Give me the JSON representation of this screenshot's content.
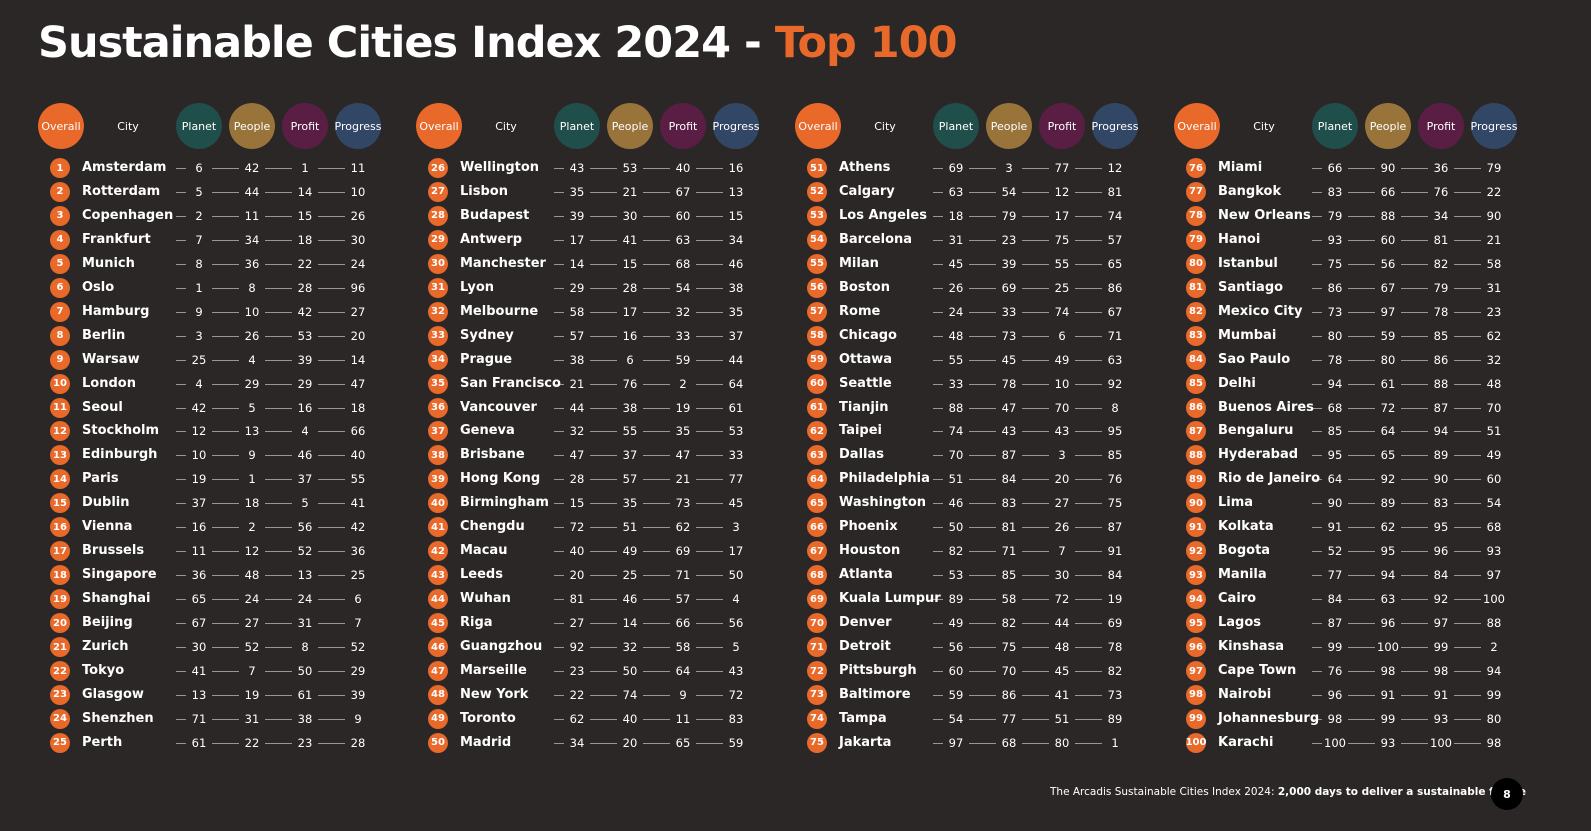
{
  "title": {
    "main": "Sustainable Cities Index 2024 - ",
    "accent": "Top 100"
  },
  "headers": {
    "overall": "Overall",
    "city": "City",
    "planet": "Planet",
    "people": "People",
    "profit": "Profit",
    "progress": "Progress"
  },
  "colors": {
    "overall": "#e8692a",
    "planet": "#1f4e4b",
    "people": "#98733a",
    "profit": "#5a1e45",
    "progress": "#324766",
    "background": "#2b2727"
  },
  "columns": [
    {
      "rows": [
        {
          "rank": 1,
          "city": "Amsterdam",
          "planet": 6,
          "people": 42,
          "profit": 1,
          "progress": 11
        },
        {
          "rank": 2,
          "city": "Rotterdam",
          "planet": 5,
          "people": 44,
          "profit": 14,
          "progress": 10
        },
        {
          "rank": 3,
          "city": "Copenhagen",
          "planet": 2,
          "people": 11,
          "profit": 15,
          "progress": 26
        },
        {
          "rank": 4,
          "city": "Frankfurt",
          "planet": 7,
          "people": 34,
          "profit": 18,
          "progress": 30
        },
        {
          "rank": 5,
          "city": "Munich",
          "planet": 8,
          "people": 36,
          "profit": 22,
          "progress": 24
        },
        {
          "rank": 6,
          "city": "Oslo",
          "planet": 1,
          "people": 8,
          "profit": 28,
          "progress": 96
        },
        {
          "rank": 7,
          "city": "Hamburg",
          "planet": 9,
          "people": 10,
          "profit": 42,
          "progress": 27
        },
        {
          "rank": 8,
          "city": "Berlin",
          "planet": 3,
          "people": 26,
          "profit": 53,
          "progress": 20
        },
        {
          "rank": 9,
          "city": "Warsaw",
          "planet": 25,
          "people": 4,
          "profit": 39,
          "progress": 14
        },
        {
          "rank": 10,
          "city": "London",
          "planet": 4,
          "people": 29,
          "profit": 29,
          "progress": 47
        },
        {
          "rank": 11,
          "city": "Seoul",
          "planet": 42,
          "people": 5,
          "profit": 16,
          "progress": 18
        },
        {
          "rank": 12,
          "city": "Stockholm",
          "planet": 12,
          "people": 13,
          "profit": 4,
          "progress": 66
        },
        {
          "rank": 13,
          "city": "Edinburgh",
          "planet": 10,
          "people": 9,
          "profit": 46,
          "progress": 40
        },
        {
          "rank": 14,
          "city": "Paris",
          "planet": 19,
          "people": 1,
          "profit": 37,
          "progress": 55
        },
        {
          "rank": 15,
          "city": "Dublin",
          "planet": 37,
          "people": 18,
          "profit": 5,
          "progress": 41
        },
        {
          "rank": 16,
          "city": "Vienna",
          "planet": 16,
          "people": 2,
          "profit": 56,
          "progress": 42
        },
        {
          "rank": 17,
          "city": "Brussels",
          "planet": 11,
          "people": 12,
          "profit": 52,
          "progress": 36
        },
        {
          "rank": 18,
          "city": "Singapore",
          "planet": 36,
          "people": 48,
          "profit": 13,
          "progress": 25
        },
        {
          "rank": 19,
          "city": "Shanghai",
          "planet": 65,
          "people": 24,
          "profit": 24,
          "progress": 6
        },
        {
          "rank": 20,
          "city": "Beijing",
          "planet": 67,
          "people": 27,
          "profit": 31,
          "progress": 7
        },
        {
          "rank": 21,
          "city": "Zurich",
          "planet": 30,
          "people": 52,
          "profit": 8,
          "progress": 52
        },
        {
          "rank": 22,
          "city": "Tokyo",
          "planet": 41,
          "people": 7,
          "profit": 50,
          "progress": 29
        },
        {
          "rank": 23,
          "city": "Glasgow",
          "planet": 13,
          "people": 19,
          "profit": 61,
          "progress": 39
        },
        {
          "rank": 24,
          "city": "Shenzhen",
          "planet": 71,
          "people": 31,
          "profit": 38,
          "progress": 9
        },
        {
          "rank": 25,
          "city": "Perth",
          "planet": 61,
          "people": 22,
          "profit": 23,
          "progress": 28
        }
      ]
    },
    {
      "rows": [
        {
          "rank": 26,
          "city": "Wellington",
          "planet": 43,
          "people": 53,
          "profit": 40,
          "progress": 16
        },
        {
          "rank": 27,
          "city": "Lisbon",
          "planet": 35,
          "people": 21,
          "profit": 67,
          "progress": 13
        },
        {
          "rank": 28,
          "city": "Budapest",
          "planet": 39,
          "people": 30,
          "profit": 60,
          "progress": 15
        },
        {
          "rank": 29,
          "city": "Antwerp",
          "planet": 17,
          "people": 41,
          "profit": 63,
          "progress": 34
        },
        {
          "rank": 30,
          "city": "Manchester",
          "planet": 14,
          "people": 15,
          "profit": 68,
          "progress": 46
        },
        {
          "rank": 31,
          "city": "Lyon",
          "planet": 29,
          "people": 28,
          "profit": 54,
          "progress": 38
        },
        {
          "rank": 32,
          "city": "Melbourne",
          "planet": 58,
          "people": 17,
          "profit": 32,
          "progress": 35
        },
        {
          "rank": 33,
          "city": "Sydney",
          "planet": 57,
          "people": 16,
          "profit": 33,
          "progress": 37
        },
        {
          "rank": 34,
          "city": "Prague",
          "planet": 38,
          "people": 6,
          "profit": 59,
          "progress": 44
        },
        {
          "rank": 35,
          "city": "San Francisco",
          "planet": 21,
          "people": 76,
          "profit": 2,
          "progress": 64
        },
        {
          "rank": 36,
          "city": "Vancouver",
          "planet": 44,
          "people": 38,
          "profit": 19,
          "progress": 61
        },
        {
          "rank": 37,
          "city": "Geneva",
          "planet": 32,
          "people": 55,
          "profit": 35,
          "progress": 53
        },
        {
          "rank": 38,
          "city": "Brisbane",
          "planet": 47,
          "people": 37,
          "profit": 47,
          "progress": 33
        },
        {
          "rank": 39,
          "city": "Hong Kong",
          "planet": 28,
          "people": 57,
          "profit": 21,
          "progress": 77
        },
        {
          "rank": 40,
          "city": "Birmingham",
          "planet": 15,
          "people": 35,
          "profit": 73,
          "progress": 45
        },
        {
          "rank": 41,
          "city": "Chengdu",
          "planet": 72,
          "people": 51,
          "profit": 62,
          "progress": 3
        },
        {
          "rank": 42,
          "city": "Macau",
          "planet": 40,
          "people": 49,
          "profit": 69,
          "progress": 17
        },
        {
          "rank": 43,
          "city": "Leeds",
          "planet": 20,
          "people": 25,
          "profit": 71,
          "progress": 50
        },
        {
          "rank": 44,
          "city": "Wuhan",
          "planet": 81,
          "people": 46,
          "profit": 57,
          "progress": 4
        },
        {
          "rank": 45,
          "city": "Riga",
          "planet": 27,
          "people": 14,
          "profit": 66,
          "progress": 56
        },
        {
          "rank": 46,
          "city": "Guangzhou",
          "planet": 92,
          "people": 32,
          "profit": 58,
          "progress": 5
        },
        {
          "rank": 47,
          "city": "Marseille",
          "planet": 23,
          "people": 50,
          "profit": 64,
          "progress": 43
        },
        {
          "rank": 48,
          "city": "New York",
          "planet": 22,
          "people": 74,
          "profit": 9,
          "progress": 72
        },
        {
          "rank": 49,
          "city": "Toronto",
          "planet": 62,
          "people": 40,
          "profit": 11,
          "progress": 83
        },
        {
          "rank": 50,
          "city": "Madrid",
          "planet": 34,
          "people": 20,
          "profit": 65,
          "progress": 59
        }
      ]
    },
    {
      "rows": [
        {
          "rank": 51,
          "city": "Athens",
          "planet": 69,
          "people": 3,
          "profit": 77,
          "progress": 12
        },
        {
          "rank": 52,
          "city": "Calgary",
          "planet": 63,
          "people": 54,
          "profit": 12,
          "progress": 81
        },
        {
          "rank": 53,
          "city": "Los Angeles",
          "planet": 18,
          "people": 79,
          "profit": 17,
          "progress": 74
        },
        {
          "rank": 54,
          "city": "Barcelona",
          "planet": 31,
          "people": 23,
          "profit": 75,
          "progress": 57
        },
        {
          "rank": 55,
          "city": "Milan",
          "planet": 45,
          "people": 39,
          "profit": 55,
          "progress": 65
        },
        {
          "rank": 56,
          "city": "Boston",
          "planet": 26,
          "people": 69,
          "profit": 25,
          "progress": 86
        },
        {
          "rank": 57,
          "city": "Rome",
          "planet": 24,
          "people": 33,
          "profit": 74,
          "progress": 67
        },
        {
          "rank": 58,
          "city": "Chicago",
          "planet": 48,
          "people": 73,
          "profit": 6,
          "progress": 71
        },
        {
          "rank": 59,
          "city": "Ottawa",
          "planet": 55,
          "people": 45,
          "profit": 49,
          "progress": 63
        },
        {
          "rank": 60,
          "city": "Seattle",
          "planet": 33,
          "people": 78,
          "profit": 10,
          "progress": 92
        },
        {
          "rank": 61,
          "city": "Tianjin",
          "planet": 88,
          "people": 47,
          "profit": 70,
          "progress": 8
        },
        {
          "rank": 62,
          "city": "Taipei",
          "planet": 74,
          "people": 43,
          "profit": 43,
          "progress": 95
        },
        {
          "rank": 63,
          "city": "Dallas",
          "planet": 70,
          "people": 87,
          "profit": 3,
          "progress": 85
        },
        {
          "rank": 64,
          "city": "Philadelphia",
          "planet": 51,
          "people": 84,
          "profit": 20,
          "progress": 76
        },
        {
          "rank": 65,
          "city": "Washington",
          "planet": 46,
          "people": 83,
          "profit": 27,
          "progress": 75
        },
        {
          "rank": 66,
          "city": "Phoenix",
          "planet": 50,
          "people": 81,
          "profit": 26,
          "progress": 87
        },
        {
          "rank": 67,
          "city": "Houston",
          "planet": 82,
          "people": 71,
          "profit": 7,
          "progress": 91
        },
        {
          "rank": 68,
          "city": "Atlanta",
          "planet": 53,
          "people": 85,
          "profit": 30,
          "progress": 84
        },
        {
          "rank": 69,
          "city": "Kuala Lumpur",
          "planet": 89,
          "people": 58,
          "profit": 72,
          "progress": 19
        },
        {
          "rank": 70,
          "city": "Denver",
          "planet": 49,
          "people": 82,
          "profit": 44,
          "progress": 69
        },
        {
          "rank": 71,
          "city": "Detroit",
          "planet": 56,
          "people": 75,
          "profit": 48,
          "progress": 78
        },
        {
          "rank": 72,
          "city": "Pittsburgh",
          "planet": 60,
          "people": 70,
          "profit": 45,
          "progress": 82
        },
        {
          "rank": 73,
          "city": "Baltimore",
          "planet": 59,
          "people": 86,
          "profit": 41,
          "progress": 73
        },
        {
          "rank": 74,
          "city": "Tampa",
          "planet": 54,
          "people": 77,
          "profit": 51,
          "progress": 89
        },
        {
          "rank": 75,
          "city": "Jakarta",
          "planet": 97,
          "people": 68,
          "profit": 80,
          "progress": 1
        }
      ]
    },
    {
      "rows": [
        {
          "rank": 76,
          "city": "Miami",
          "planet": 66,
          "people": 90,
          "profit": 36,
          "progress": 79
        },
        {
          "rank": 77,
          "city": "Bangkok",
          "planet": 83,
          "people": 66,
          "profit": 76,
          "progress": 22
        },
        {
          "rank": 78,
          "city": "New Orleans",
          "planet": 79,
          "people": 88,
          "profit": 34,
          "progress": 90
        },
        {
          "rank": 79,
          "city": "Hanoi",
          "planet": 93,
          "people": 60,
          "profit": 81,
          "progress": 21
        },
        {
          "rank": 80,
          "city": "Istanbul",
          "planet": 75,
          "people": 56,
          "profit": 82,
          "progress": 58
        },
        {
          "rank": 81,
          "city": "Santiago",
          "planet": 86,
          "people": 67,
          "profit": 79,
          "progress": 31
        },
        {
          "rank": 82,
          "city": "Mexico City",
          "planet": 73,
          "people": 97,
          "profit": 78,
          "progress": 23
        },
        {
          "rank": 83,
          "city": "Mumbai",
          "planet": 80,
          "people": 59,
          "profit": 85,
          "progress": 62
        },
        {
          "rank": 84,
          "city": "Sao Paulo",
          "planet": 78,
          "people": 80,
          "profit": 86,
          "progress": 32
        },
        {
          "rank": 85,
          "city": "Delhi",
          "planet": 94,
          "people": 61,
          "profit": 88,
          "progress": 48
        },
        {
          "rank": 86,
          "city": "Buenos Aires",
          "planet": 68,
          "people": 72,
          "profit": 87,
          "progress": 70
        },
        {
          "rank": 87,
          "city": "Bengaluru",
          "planet": 85,
          "people": 64,
          "profit": 94,
          "progress": 51
        },
        {
          "rank": 88,
          "city": "Hyderabad",
          "planet": 95,
          "people": 65,
          "profit": 89,
          "progress": 49
        },
        {
          "rank": 89,
          "city": "Rio de Janeiro",
          "planet": 64,
          "people": 92,
          "profit": 90,
          "progress": 60
        },
        {
          "rank": 90,
          "city": "Lima",
          "planet": 90,
          "people": 89,
          "profit": 83,
          "progress": 54
        },
        {
          "rank": 91,
          "city": "Kolkata",
          "planet": 91,
          "people": 62,
          "profit": 95,
          "progress": 68
        },
        {
          "rank": 92,
          "city": "Bogota",
          "planet": 52,
          "people": 95,
          "profit": 96,
          "progress": 93
        },
        {
          "rank": 93,
          "city": "Manila",
          "planet": 77,
          "people": 94,
          "profit": 84,
          "progress": 97
        },
        {
          "rank": 94,
          "city": "Cairo",
          "planet": 84,
          "people": 63,
          "profit": 92,
          "progress": 100
        },
        {
          "rank": 95,
          "city": "Lagos",
          "planet": 87,
          "people": 96,
          "profit": 97,
          "progress": 88
        },
        {
          "rank": 96,
          "city": "Kinshasa",
          "planet": 99,
          "people": 100,
          "profit": 99,
          "progress": 2
        },
        {
          "rank": 97,
          "city": "Cape Town",
          "planet": 76,
          "people": 98,
          "profit": 98,
          "progress": 94
        },
        {
          "rank": 98,
          "city": "Nairobi",
          "planet": 96,
          "people": 91,
          "profit": 91,
          "progress": 99
        },
        {
          "rank": 99,
          "city": "Johannesburg",
          "planet": 98,
          "people": 99,
          "profit": 93,
          "progress": 80
        },
        {
          "rank": 100,
          "city": "Karachi",
          "planet": 100,
          "people": 93,
          "profit": 100,
          "progress": 98
        }
      ]
    }
  ],
  "footer": {
    "text": "The Arcadis Sustainable Cities Index 2024: ",
    "bold": "2,000 days to deliver a sustainable future"
  },
  "page_number": "8"
}
